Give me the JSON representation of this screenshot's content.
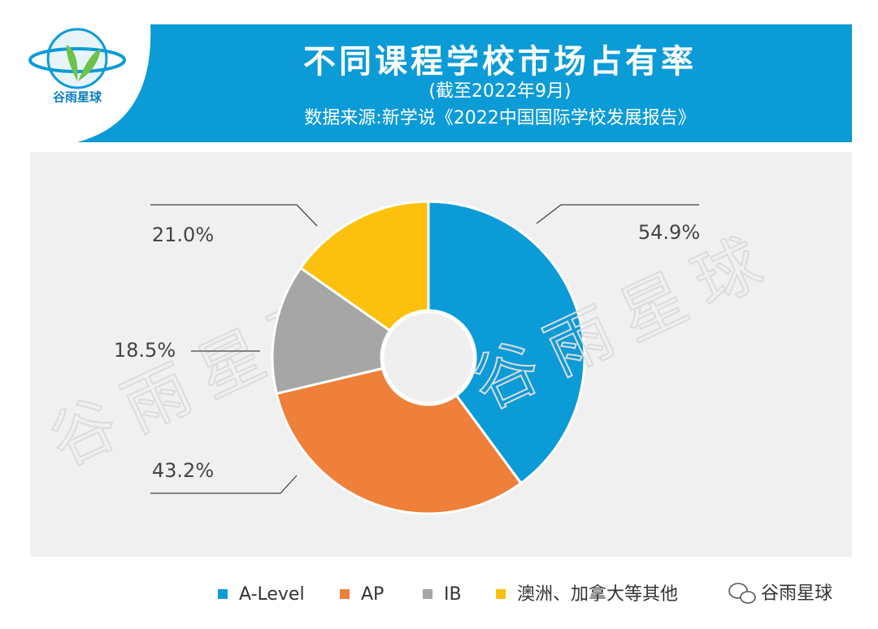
{
  "brand": "谷雨星球",
  "chart_data": {
    "type": "donut",
    "title": "不同课程学校市场占有率",
    "subtitle": "(截至2022年9月)",
    "source": "数据来源:新学说《2022中国国际学校发展报告》",
    "categories": [
      "A-Level",
      "AP",
      "IB",
      "澳洲、加拿大等其他"
    ],
    "values": [
      54.9,
      43.2,
      18.5,
      21.0
    ],
    "value_labels": [
      "54.9%",
      "43.2%",
      "18.5%",
      "21.0%"
    ],
    "colors": [
      "#0b9bd7",
      "#ee8039",
      "#a6a6a6",
      "#fcc10e"
    ],
    "legend": "bottom"
  }
}
